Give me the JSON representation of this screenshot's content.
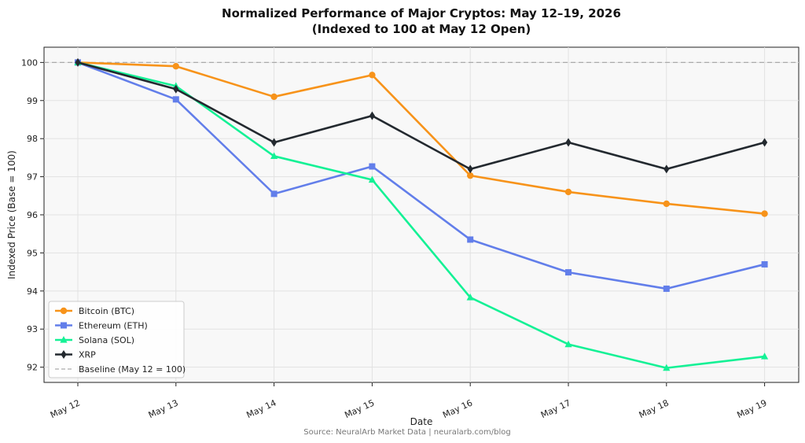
{
  "chart_data": {
    "type": "line",
    "title_line1": "Normalized Performance of Major Cryptos: May 12–19, 2026",
    "title_line2": "(Indexed to 100 at May 12 Open)",
    "xlabel": "Date",
    "ylabel": "Indexed Price (Base = 100)",
    "categories": [
      "May 12",
      "May 13",
      "May 14",
      "May 15",
      "May 16",
      "May 17",
      "May 18",
      "May 19"
    ],
    "ylim": [
      91.6,
      100.4
    ],
    "yticks": [
      92,
      93,
      94,
      95,
      96,
      97,
      98,
      99,
      100
    ],
    "grid": true,
    "legend_placement": "lower-left",
    "series": [
      {
        "name": "Bitcoin (BTC)",
        "color": "#F7931A",
        "marker": "circle",
        "values": [
          100.0,
          99.9,
          99.1,
          99.67,
          97.03,
          96.6,
          96.29,
          96.03
        ]
      },
      {
        "name": "Ethereum (ETH)",
        "color": "#627EEA",
        "marker": "square",
        "values": [
          100.0,
          99.03,
          96.55,
          97.27,
          95.35,
          94.49,
          94.06,
          94.7
        ]
      },
      {
        "name": "Solana (SOL)",
        "color": "#14F195",
        "marker": "triangle",
        "values": [
          100.0,
          99.38,
          97.54,
          96.92,
          93.83,
          92.6,
          91.98,
          92.28
        ]
      },
      {
        "name": "XRP",
        "color": "#23292F",
        "marker": "diamond",
        "values": [
          100.0,
          99.3,
          97.9,
          98.6,
          97.2,
          97.9,
          97.2,
          97.9
        ]
      }
    ],
    "baseline": {
      "name": "Baseline (May 12 = 100)",
      "value": 100,
      "color": "#AAAAAA"
    },
    "source": "Source: NeuralArb Market Data | neuralarb.com/blog"
  }
}
